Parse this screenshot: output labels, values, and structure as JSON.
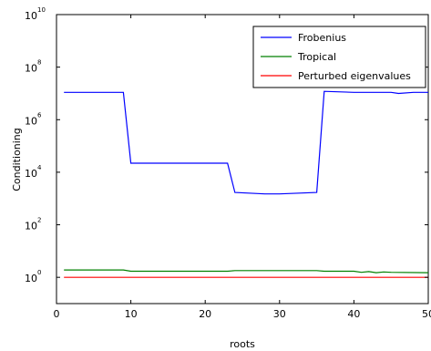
{
  "chart_data": {
    "type": "line",
    "title": "",
    "xlabel": "roots",
    "ylabel": "Conditioning",
    "xlim": [
      0,
      50
    ],
    "ylim_exponent": [
      -1,
      10
    ],
    "y_scale": "log",
    "x_ticks": [
      "0",
      "10",
      "20",
      "30",
      "40",
      "50"
    ],
    "y_ticks": [
      {
        "base": "10",
        "exp": "0"
      },
      {
        "base": "10",
        "exp": "2"
      },
      {
        "base": "10",
        "exp": "4"
      },
      {
        "base": "10",
        "exp": "6"
      },
      {
        "base": "10",
        "exp": "8"
      },
      {
        "base": "10",
        "exp": "10"
      }
    ],
    "legend_position": "top-right",
    "grid": false,
    "series": [
      {
        "name": "Frobenius",
        "color": "#0000ff",
        "points": [
          [
            1,
            11000000.0
          ],
          [
            9,
            11000000.0
          ],
          [
            10,
            22000.0
          ],
          [
            23,
            22000.0
          ],
          [
            24,
            1700.0
          ],
          [
            28,
            1500.0
          ],
          [
            30,
            1500.0
          ],
          [
            35,
            1700.0
          ],
          [
            36,
            12000000.0
          ],
          [
            40,
            11000000.0
          ],
          [
            45,
            11000000.0
          ],
          [
            46,
            10000000.0
          ],
          [
            48,
            11000000.0
          ],
          [
            50,
            11000000.0
          ]
        ]
      },
      {
        "name": "Tropical",
        "color": "#008000",
        "points": [
          [
            1,
            1.9
          ],
          [
            9,
            1.9
          ],
          [
            10,
            1.7
          ],
          [
            23,
            1.7
          ],
          [
            24,
            1.8
          ],
          [
            35,
            1.8
          ],
          [
            36,
            1.7
          ],
          [
            40,
            1.7
          ],
          [
            41,
            1.55
          ],
          [
            42,
            1.65
          ],
          [
            43,
            1.5
          ],
          [
            44,
            1.6
          ],
          [
            45,
            1.55
          ],
          [
            50,
            1.5
          ]
        ]
      },
      {
        "name": "Perturbed eigenvalues",
        "color": "#ff0000",
        "points": [
          [
            1,
            1.0
          ],
          [
            50,
            1.0
          ]
        ]
      }
    ]
  }
}
